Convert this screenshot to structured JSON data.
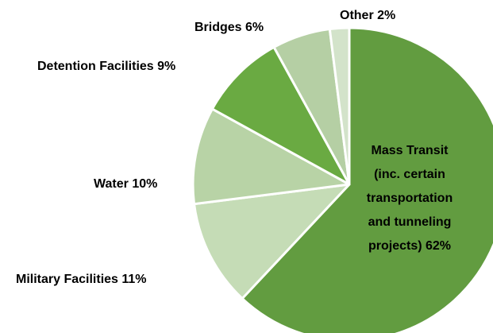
{
  "chart_data": {
    "type": "pie",
    "categories": [
      "Mass Transit (inc. certain transportation and tunneling projects)",
      "Military Facilities",
      "Water",
      "Detention Facilities",
      "Bridges",
      "Other"
    ],
    "values": [
      62,
      11,
      10,
      9,
      6,
      2
    ],
    "value_labels": [
      "62%",
      "11%",
      "10%",
      "9%",
      "6%",
      "2%"
    ],
    "colors": [
      "#629c40",
      "#c5dcb6",
      "#b8d3a6",
      "#6aaa42",
      "#b5cfa4",
      "#d3e3ca"
    ]
  }
}
